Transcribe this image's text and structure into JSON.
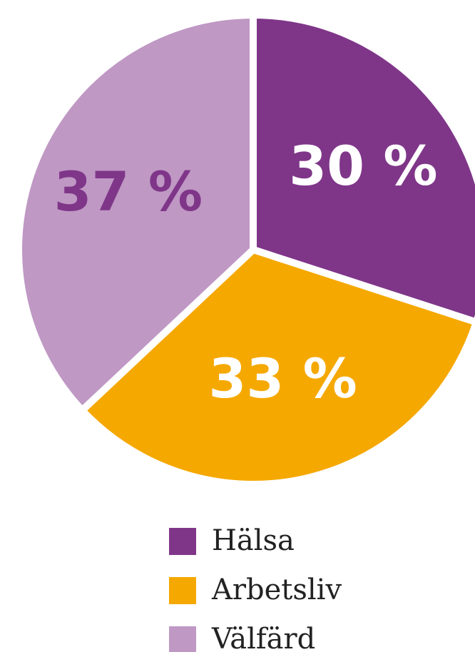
{
  "chart_data": {
    "type": "pie",
    "categories": [
      "Hälsa",
      "Arbetsliv",
      "Välfärd"
    ],
    "values": [
      30,
      33,
      37
    ],
    "value_labels": [
      "30 %",
      "33 %",
      "37 %"
    ],
    "colors": [
      "#7f3689",
      "#f5a800",
      "#bf98c4"
    ],
    "label_colors": [
      "#ffffff",
      "#ffffff",
      "#7f3689"
    ],
    "legend": "bottom"
  }
}
